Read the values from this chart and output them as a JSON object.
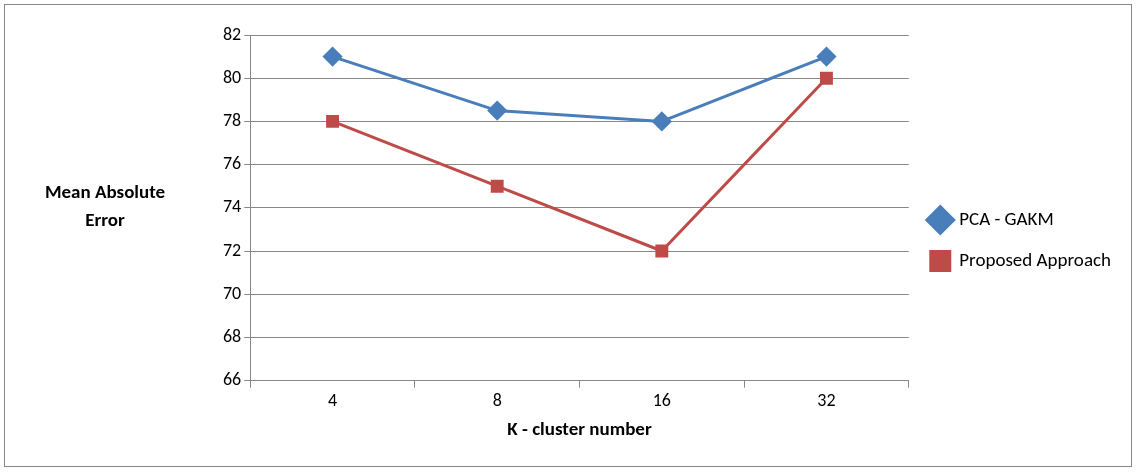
{
  "chart_data": {
    "type": "line",
    "xlabel": "K - cluster number",
    "ylabel": "Mean Absolute Error",
    "categories": [
      "4",
      "8",
      "16",
      "32"
    ],
    "series": [
      {
        "name": "PCA - GAKM",
        "color": "#4a7ebb",
        "values": [
          81,
          78.5,
          78,
          81
        ]
      },
      {
        "name": "Proposed Approach",
        "color": "#be4b48",
        "marker": "square",
        "values": [
          78,
          75,
          72,
          80
        ]
      }
    ],
    "marker": "diamond",
    "ylim": [
      66,
      82
    ],
    "yticks": [
      66,
      68,
      70,
      72,
      74,
      76,
      78,
      80,
      82
    ],
    "grid": "y",
    "legend": "right"
  }
}
